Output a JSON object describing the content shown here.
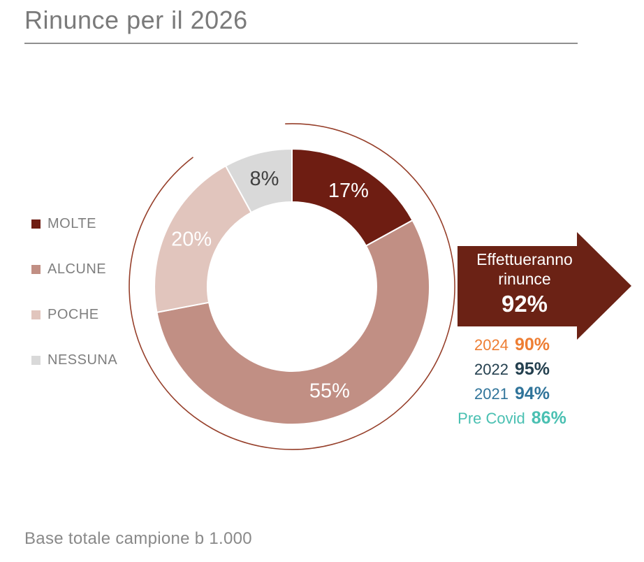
{
  "header": {
    "title": "Rinunce per il 2026"
  },
  "chart_data": {
    "type": "donut",
    "title": "Rinunce per il 2026",
    "start_angle_deg": 0,
    "direction": "clockwise",
    "units": "%",
    "segments": [
      {
        "label": "MOLTE",
        "value": 17,
        "color": "#6e1d12",
        "label_color": "#ffffff"
      },
      {
        "label": "ALCUNE",
        "value": 55,
        "color": "#c18f84",
        "label_color": "#ffffff"
      },
      {
        "label": "POCHE",
        "value": 20,
        "color": "#e1c5bd",
        "label_color": "#ffffff"
      },
      {
        "label": "NESSUNA",
        "value": 8,
        "color": "#d9d9d9",
        "label_color": "#404040"
      }
    ],
    "decor_arc_color": "#963f2a"
  },
  "legend": {
    "items": [
      {
        "label": "MOLTE",
        "color": "#6e1d12"
      },
      {
        "label": "ALCUNE",
        "color": "#c18f84"
      },
      {
        "label": "POCHE",
        "color": "#e1c5bd"
      },
      {
        "label": "NESSUNA",
        "color": "#d9d9d9"
      }
    ]
  },
  "callout": {
    "line1": "Effettueranno",
    "line2": "rinunce",
    "value": "92%",
    "arrow_color": "#6b2215",
    "history": [
      {
        "label": "2024",
        "value": "90%",
        "color": "#ee7e33"
      },
      {
        "label": "2022",
        "value": "95%",
        "color": "#24404f"
      },
      {
        "label": "2021",
        "value": "94%",
        "color": "#30749a"
      },
      {
        "label": "Pre Covid",
        "value": "86%",
        "color": "#4ac0b2"
      }
    ]
  },
  "footer": {
    "base_note": "Base totale campione b 1.000"
  }
}
